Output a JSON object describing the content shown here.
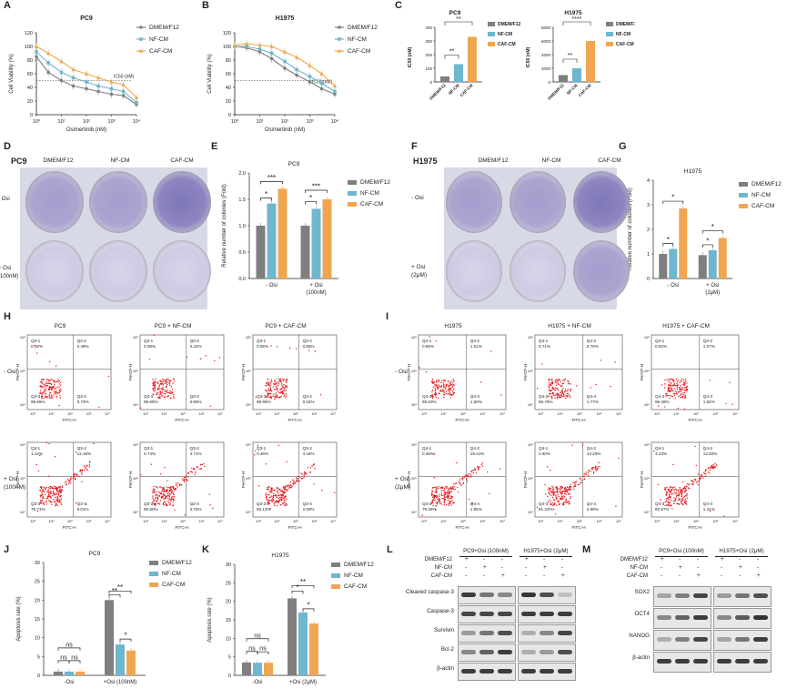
{
  "panel_letters": [
    "A",
    "B",
    "C",
    "D",
    "E",
    "F",
    "G",
    "H",
    "I",
    "J",
    "K",
    "L",
    "M"
  ],
  "colors": {
    "dmem": "#7f7f7f",
    "nf": "#6fb6cf",
    "caf": "#f0a650"
  },
  "legend": [
    "DMEM/F12",
    "NF-CM",
    "CAF-CM"
  ],
  "chart_data": [
    {
      "id": "A",
      "type": "line",
      "title": "PC9",
      "xlabel": "Osimertinib (nM)",
      "ylabel": "Cell Viability (%)",
      "xticks": [
        "10⁰",
        "10¹",
        "10²",
        "10³",
        "10⁴"
      ],
      "yticks": [
        "0",
        "20",
        "40",
        "60",
        "80",
        "100",
        "120"
      ],
      "annotation": "IC50 (nM)",
      "series": [
        {
          "name": "DMEM/F12",
          "x": [
            1,
            3,
            10,
            30,
            100,
            300,
            1000,
            3000,
            10000
          ],
          "values": [
            85,
            62,
            50,
            42,
            38,
            34,
            30,
            28,
            15
          ]
        },
        {
          "name": "NF-CM",
          "x": [
            1,
            3,
            10,
            30,
            100,
            300,
            1000,
            3000,
            10000
          ],
          "values": [
            92,
            76,
            62,
            54,
            48,
            42,
            38,
            34,
            18
          ]
        },
        {
          "name": "CAF-CM",
          "x": [
            1,
            3,
            10,
            30,
            100,
            300,
            1000,
            3000,
            10000
          ],
          "values": [
            100,
            90,
            78,
            66,
            60,
            54,
            48,
            44,
            25
          ]
        }
      ]
    },
    {
      "id": "B",
      "type": "line",
      "title": "H1975",
      "xlabel": "Osimertinib (nM)",
      "ylabel": "Cell Viability (%)",
      "xticks": [
        "10⁰",
        "10¹",
        "10²",
        "10³",
        "10⁴"
      ],
      "yticks": [
        "0",
        "20",
        "40",
        "60",
        "80",
        "100",
        "120"
      ],
      "annotation": "IC50 (nM)",
      "series": [
        {
          "name": "DMEM/F12",
          "x": [
            1,
            3,
            10,
            30,
            100,
            300,
            1000,
            3000,
            10000
          ],
          "values": [
            100,
            98,
            92,
            82,
            68,
            58,
            48,
            38,
            30
          ]
        },
        {
          "name": "NF-CM",
          "x": [
            1,
            3,
            10,
            30,
            100,
            300,
            1000,
            3000,
            10000
          ],
          "values": [
            100,
            100,
            96,
            90,
            78,
            66,
            56,
            46,
            34
          ]
        },
        {
          "name": "CAF-CM",
          "x": [
            1,
            3,
            10,
            30,
            100,
            300,
            1000,
            3000,
            10000
          ],
          "values": [
            102,
            104,
            102,
            100,
            92,
            84,
            72,
            60,
            42
          ]
        }
      ]
    },
    {
      "id": "C1",
      "type": "bar",
      "title": "PC9",
      "ylabel": "IC50 (nM)",
      "categories": [
        "DMEM/F12",
        "NF-CM",
        "CAF-CM"
      ],
      "values": [
        40,
        130,
        330
      ],
      "ylim": [
        0,
        400
      ],
      "yticks": [
        "0",
        "100",
        "200",
        "300",
        "400"
      ],
      "significance": [
        "**",
        "**"
      ]
    },
    {
      "id": "C2",
      "type": "bar",
      "title": "H1975",
      "ylabel": "IC50 (nM)",
      "categories": [
        "DMEM/F12",
        "NF-CM",
        "CAF-CM"
      ],
      "values": [
        1000,
        2000,
        6000
      ],
      "ylim": [
        0,
        8000
      ],
      "yticks": [
        "0",
        "2000",
        "4000",
        "6000",
        "8000"
      ],
      "significance": [
        "**",
        "****"
      ]
    },
    {
      "id": "E",
      "type": "bar",
      "title": "PC9",
      "ylabel": "Relative number of colonies (Fold)",
      "categories": [
        "- Osi",
        "+ Osi (100nM)"
      ],
      "series": [
        {
          "name": "DMEM/F12",
          "values": [
            1.0,
            1.0
          ]
        },
        {
          "name": "NF-CM",
          "values": [
            1.42,
            1.32
          ]
        },
        {
          "name": "CAF-CM",
          "values": [
            1.7,
            1.5
          ]
        }
      ],
      "ylim": [
        0,
        2.0
      ],
      "yticks": [
        "0.0",
        "0.5",
        "1.0",
        "1.5",
        "2.0"
      ],
      "significance": [
        "*",
        "***",
        "*",
        "***"
      ]
    },
    {
      "id": "G",
      "type": "bar",
      "title": "H1975",
      "ylabel": "Relative number of colonies (Fold)",
      "categories": [
        "- Osi",
        "+ Osi (2μM)"
      ],
      "series": [
        {
          "name": "DMEM/F12",
          "values": [
            1.0,
            0.95
          ]
        },
        {
          "name": "NF-CM",
          "values": [
            1.2,
            1.15
          ]
        },
        {
          "name": "CAF-CM",
          "values": [
            2.85,
            1.65
          ]
        }
      ],
      "ylim": [
        0,
        4
      ],
      "yticks": [
        "0",
        "1",
        "2",
        "3",
        "4"
      ],
      "significance": [
        "*",
        "*",
        "*",
        "*"
      ]
    },
    {
      "id": "J",
      "type": "bar",
      "title": "PC9",
      "ylabel": "Apoptosis rate (%)",
      "categories": [
        "-Osi",
        "+Osi (100nM)"
      ],
      "series": [
        {
          "name": "DMEM/F12",
          "values": [
            1.0,
            20.0
          ]
        },
        {
          "name": "NF-CM",
          "values": [
            1.0,
            8.2
          ]
        },
        {
          "name": "CAF-CM",
          "values": [
            1.0,
            6.6
          ]
        }
      ],
      "ylim": [
        0,
        30
      ],
      "yticks": [
        "0",
        "5",
        "10",
        "15",
        "20",
        "25",
        "30"
      ],
      "significance": [
        "ns",
        "ns",
        "ns",
        "**",
        "**",
        "*"
      ]
    },
    {
      "id": "K",
      "type": "bar",
      "title": "H1975",
      "ylabel": "Apoptosis rate (%)",
      "categories": [
        "-Osi",
        "+Osi (2μM)"
      ],
      "series": [
        {
          "name": "DMEM/F12",
          "values": [
            3.5,
            20.8
          ]
        },
        {
          "name": "NF-CM",
          "values": [
            3.4,
            17.0
          ]
        },
        {
          "name": "CAF-CM",
          "values": [
            3.4,
            14.0
          ]
        }
      ],
      "ylim": [
        0,
        30
      ],
      "yticks": [
        "0",
        "5",
        "10",
        "15",
        "20",
        "25",
        "30"
      ],
      "significance": [
        "ns",
        "ns",
        "ns",
        "**",
        "*",
        "*"
      ]
    }
  ],
  "colony": {
    "D": {
      "cell": "PC9",
      "cols": [
        "DMEM/F12",
        "NF-CM",
        "CAF-CM"
      ],
      "rows": [
        "- Osi",
        "+ Osi (100nM)"
      ]
    },
    "F": {
      "cell": "H1975",
      "cols": [
        "DMEM/F12",
        "NF-CM",
        "CAF-CM"
      ],
      "rows": [
        "- Osi",
        "+ Osi (2μM)"
      ]
    }
  },
  "flow": {
    "axis_x": "FITC-H",
    "axis_y": "PerCP-H",
    "H": {
      "titles": [
        "PC9",
        "PC9 + NF-CM",
        "PC9 + CAF-CM"
      ],
      "rows": [
        "- Osi",
        "+ Osi (100nM)"
      ],
      "prefix": "Q3",
      "quadrants": [
        [
          [
            "0.16%",
            "0.48%",
            "98.65%",
            "0.72%"
          ],
          [
            "0.08%",
            "0.42%",
            "98.85%",
            "0.65%"
          ],
          [
            "0.06%",
            "0.65%",
            "98.95%",
            "0.34%"
          ]
        ],
        [
          [
            "1.12%",
            "12.16%",
            "78.71%",
            "8.01%"
          ],
          [
            "0.74%",
            "4.71%",
            "90.80%",
            "3.75%"
          ],
          [
            "0.46%",
            "4.34%",
            "93.12%",
            "2.09%"
          ]
        ]
      ]
    },
    "I": {
      "titles": [
        "H1975",
        "H1975 + NF-CM",
        "H1975 + CAF-CM"
      ],
      "rows": [
        "- Osi",
        "+ Osi (2μM)"
      ],
      "prefix": "Q4",
      "quadrants": [
        [
          [
            "0.86%",
            "1.01%",
            "96.63%",
            "1.50%"
          ],
          [
            "0.71%",
            "0.76%",
            "96.76%",
            "1.77%"
          ],
          [
            "0.62%",
            "1.07%",
            "96.49%",
            "1.82%"
          ]
        ],
        [
          [
            "0.48%",
            "19.41%",
            "78.26%",
            "1.85%"
          ],
          [
            "2.60%",
            "13.20%",
            "81.22%",
            "2.98%"
          ],
          [
            "3.23%",
            "12.50%",
            "82.87%",
            "1.41%"
          ]
        ]
      ]
    }
  },
  "blots": {
    "L": {
      "groups": [
        "PC9+Osi (100nM)",
        "H1975+Osi (2μM)"
      ],
      "conds": [
        "DMEM/F12",
        "NF-CM",
        "CAF-CM"
      ],
      "proteins": [
        "Cleaved caspase-3",
        "Caspase-3",
        "Survivin",
        "Bcl-2",
        "β-actin"
      ]
    },
    "M": {
      "groups": [
        "PC9+Osi (100nM)",
        "H1975+Osi (2μM)"
      ],
      "conds": [
        "DMEM/F12",
        "NF-CM",
        "CAF-CM"
      ],
      "proteins": [
        "SOX2",
        "OCT4",
        "NANOG",
        "β-actin"
      ]
    }
  },
  "signs": {
    "plus": "+",
    "minus": "-"
  }
}
